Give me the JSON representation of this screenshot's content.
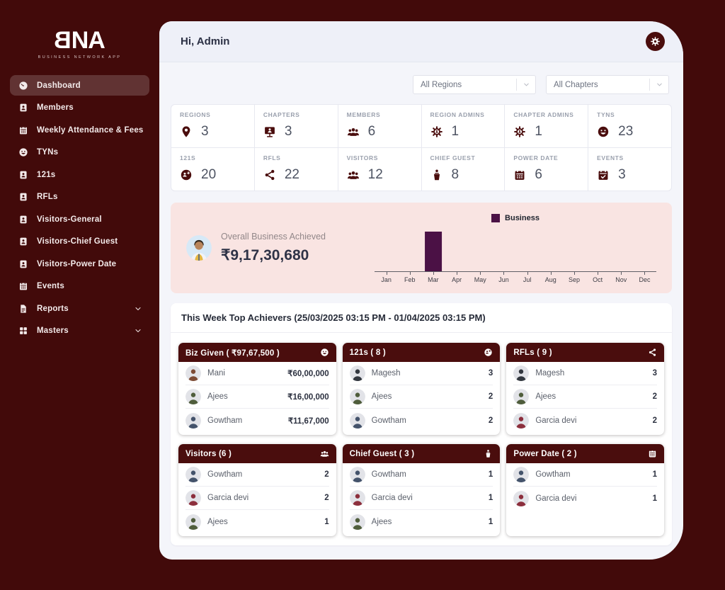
{
  "app": {
    "logo_b": "B",
    "logo_na": "NA",
    "logo_sub": "BUSINESS NETWORK APP"
  },
  "header": {
    "greeting": "Hi, Admin"
  },
  "filters": {
    "regions_value": "All Regions",
    "chapters_value": "All Chapters"
  },
  "sidebar": {
    "items": [
      {
        "label": "Dashboard",
        "icon": "gauge-icon",
        "active": true
      },
      {
        "label": "Members",
        "icon": "member-icon"
      },
      {
        "label": "Weekly Attendance & Fees",
        "icon": "calendar-icon"
      },
      {
        "label": "TYNs",
        "icon": "smiley-icon"
      },
      {
        "label": "121s",
        "icon": "member-icon"
      },
      {
        "label": "RFLs",
        "icon": "member-icon"
      },
      {
        "label": "Visitors-General",
        "icon": "member-icon"
      },
      {
        "label": "Visitors-Chief Guest",
        "icon": "member-icon"
      },
      {
        "label": "Visitors-Power Date",
        "icon": "member-icon"
      },
      {
        "label": "Events",
        "icon": "calendar-icon"
      },
      {
        "label": "Reports",
        "icon": "report-icon",
        "expandable": true
      },
      {
        "label": "Masters",
        "icon": "grid-icon",
        "expandable": true
      }
    ]
  },
  "stats": [
    {
      "label": "REGIONS",
      "value": "3",
      "icon": "map-pin-icon"
    },
    {
      "label": "CHAPTERS",
      "value": "3",
      "icon": "presentation-icon"
    },
    {
      "label": "MEMBERS",
      "value": "6",
      "icon": "users-icon"
    },
    {
      "label": "REGION ADMINS",
      "value": "1",
      "icon": "admin-gear-icon"
    },
    {
      "label": "CHAPTER ADMINS",
      "value": "1",
      "icon": "admin-gear-icon"
    },
    {
      "label": "TYNS",
      "value": "23",
      "icon": "smiley-icon"
    },
    {
      "label": "121S",
      "value": "20",
      "icon": "one-to-one-icon"
    },
    {
      "label": "RFLS",
      "value": "22",
      "icon": "share-icon"
    },
    {
      "label": "VISITORS",
      "value": "12",
      "icon": "users-icon"
    },
    {
      "label": "CHIEF GUEST",
      "value": "8",
      "icon": "podium-icon"
    },
    {
      "label": "POWER DATE",
      "value": "6",
      "icon": "calendar-solid-icon"
    },
    {
      "label": "EVENTS",
      "value": "3",
      "icon": "calendar-check-icon"
    }
  ],
  "business": {
    "title": "Overall Business Achieved",
    "amount": "₹9,17,30,680"
  },
  "chart_data": {
    "type": "bar",
    "title": "Overall Business Achieved",
    "categories": [
      "Jan",
      "Feb",
      "Mar",
      "Apr",
      "May",
      "Jun",
      "Jul",
      "Aug",
      "Sep",
      "Oct",
      "Nov",
      "Dec"
    ],
    "series": [
      {
        "name": "Business",
        "values": [
          0,
          0,
          91730680,
          0,
          0,
          0,
          0,
          0,
          0,
          0,
          0,
          0
        ]
      }
    ],
    "bar_color": "#4b1145",
    "xlabel": "",
    "ylabel": "",
    "ylim": [
      0,
      91730680
    ],
    "grid": false,
    "legend_position": "top-center"
  },
  "achievers": {
    "title": "This Week Top Achievers (25/03/2025 03:15 PM - 01/04/2025 03:15 PM)",
    "cards": [
      {
        "title": "Biz Given ( ₹97,67,500 )",
        "icon": "smiley-icon",
        "rows": [
          {
            "name": "Mani",
            "value": "₹60,00,000",
            "avatar": "#7d4b35"
          },
          {
            "name": "Ajees",
            "value": "₹16,00,000",
            "avatar": "#4f5d3c"
          },
          {
            "name": "Gowtham",
            "value": "₹11,67,000",
            "avatar": "#44536b"
          }
        ]
      },
      {
        "title": "121s ( 8 )",
        "icon": "one-to-one-icon",
        "rows": [
          {
            "name": "Magesh",
            "value": "3",
            "avatar": "#32373f"
          },
          {
            "name": "Ajees",
            "value": "2",
            "avatar": "#4f5d3c"
          },
          {
            "name": "Gowtham",
            "value": "2",
            "avatar": "#44536b"
          }
        ]
      },
      {
        "title": "RFLs ( 9 )",
        "icon": "share-icon",
        "rows": [
          {
            "name": "Magesh",
            "value": "3",
            "avatar": "#32373f"
          },
          {
            "name": "Ajees",
            "value": "2",
            "avatar": "#4f5d3c"
          },
          {
            "name": "Garcia devi",
            "value": "2",
            "avatar": "#8c2f3d"
          }
        ]
      },
      {
        "title": "Visitors (6 )",
        "icon": "users-icon",
        "rows": [
          {
            "name": "Gowtham",
            "value": "2",
            "avatar": "#44536b"
          },
          {
            "name": "Garcia devi",
            "value": "2",
            "avatar": "#8c2f3d"
          },
          {
            "name": "Ajees",
            "value": "1",
            "avatar": "#4f5d3c"
          }
        ]
      },
      {
        "title": "Chief Guest ( 3 )",
        "icon": "podium-icon",
        "rows": [
          {
            "name": "Gowtham",
            "value": "1",
            "avatar": "#44536b"
          },
          {
            "name": "Garcia devi",
            "value": "1",
            "avatar": "#8c2f3d"
          },
          {
            "name": "Ajees",
            "value": "1",
            "avatar": "#4f5d3c"
          }
        ]
      },
      {
        "title": "Power Date ( 2 )",
        "icon": "calendar-solid-icon",
        "rows": [
          {
            "name": "Gowtham",
            "value": "1",
            "avatar": "#44536b"
          },
          {
            "name": "Garcia devi",
            "value": "1",
            "avatar": "#8c2f3d"
          }
        ]
      }
    ]
  },
  "colors": {
    "sidebar_bg": "#420a0a",
    "card_header": "#4a0d0d",
    "banner_bg": "#f9e4e2",
    "bar": "#4b1145"
  }
}
